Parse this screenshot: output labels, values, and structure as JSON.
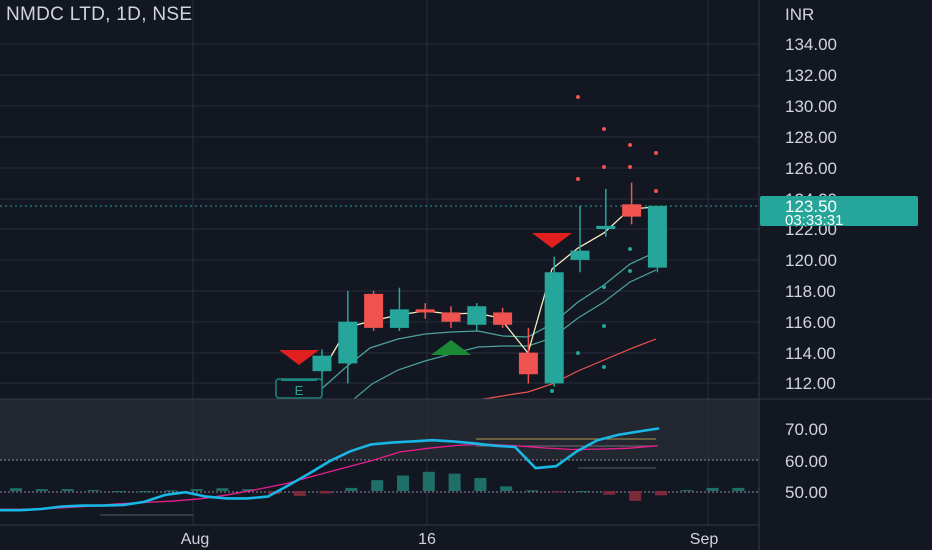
{
  "header": {
    "title": "NMDC LTD, 1D, NSE"
  },
  "price_axis": {
    "currency": "INR",
    "ticks": [
      "134.00",
      "132.00",
      "130.00",
      "128.00",
      "126.00",
      "124.00",
      "122.00",
      "120.00",
      "118.00",
      "116.00",
      "114.00",
      "112.00"
    ],
    "current_price": "123.50",
    "countdown": "03:33:31",
    "badge_color": "#26a69a"
  },
  "oscillator_axis": {
    "ticks": [
      "70.00",
      "60.00",
      "50.00"
    ]
  },
  "time_axis": {
    "labels": [
      "Aug",
      "16",
      "Sep"
    ]
  },
  "markers": {
    "earnings_label": "E"
  },
  "colors": {
    "up": "#26a69a",
    "down": "#ef5350",
    "background": "#131722",
    "text": "#d1d4dc"
  },
  "chart_data": {
    "type": "candlestick",
    "symbol": "NMDC LTD",
    "interval": "1D",
    "exchange": "NSE",
    "ylim": [
      111,
      135
    ],
    "candles": [
      {
        "o": 112.8,
        "h": 114.2,
        "l": 112.0,
        "c": 113.8
      },
      {
        "o": 113.3,
        "h": 118.0,
        "l": 112.0,
        "c": 116.0
      },
      {
        "o": 117.8,
        "h": 118.0,
        "l": 115.4,
        "c": 115.6
      },
      {
        "o": 115.6,
        "h": 118.2,
        "l": 115.4,
        "c": 116.8
      },
      {
        "o": 116.8,
        "h": 117.2,
        "l": 116.2,
        "c": 116.6
      },
      {
        "o": 116.6,
        "h": 117.0,
        "l": 115.6,
        "c": 116.0
      },
      {
        "o": 115.8,
        "h": 117.2,
        "l": 115.4,
        "c": 117.0
      },
      {
        "o": 116.6,
        "h": 116.9,
        "l": 115.6,
        "c": 115.8
      },
      {
        "o": 114.0,
        "h": 115.6,
        "l": 112.0,
        "c": 112.6
      },
      {
        "o": 112.0,
        "h": 120.2,
        "l": 111.8,
        "c": 119.2
      },
      {
        "o": 120.0,
        "h": 123.5,
        "l": 119.2,
        "c": 120.6
      },
      {
        "o": 122.0,
        "h": 124.6,
        "l": 121.5,
        "c": 122.2
      },
      {
        "o": 123.6,
        "h": 125.0,
        "l": 122.3,
        "c": 122.8
      },
      {
        "o": 119.5,
        "h": 123.5,
        "l": 119.2,
        "c": 123.5
      }
    ],
    "oscillator": {
      "ylim": [
        43,
        75
      ],
      "histogram": [
        50.9,
        50.6,
        50.6,
        50.3,
        50.0,
        50.0,
        50.2,
        50.6,
        50.9,
        50.6,
        49.0,
        48.4,
        49.2,
        51.0,
        53.5,
        55.0,
        56.2,
        55.6,
        54.2,
        51.5,
        50.2,
        49.6,
        50.0,
        48.8,
        46.8,
        48.6,
        50.3,
        51.0,
        51.0,
        51.0,
        51.0
      ],
      "signal_line": [
        44.1,
        44.1,
        44.5,
        45.0,
        45.8,
        46.3,
        46.7,
        47.5,
        48.8,
        50.5,
        52.4,
        54.9,
        57.4,
        59.8,
        62.6,
        63.8,
        64.7,
        65.1,
        64.6,
        63.9,
        63.4,
        63.5,
        63.8,
        64.6
      ],
      "fast_line": [
        43.8,
        43.8,
        44.2,
        45.0,
        45.3,
        45.3,
        45.5,
        46.5,
        48.7,
        49.6,
        48.2,
        47.6,
        47.6,
        48.2,
        51.8,
        55.6,
        59.6,
        62.8,
        65.0,
        65.6,
        66.0,
        66.4,
        66.0,
        65.4,
        64.6,
        64.2,
        57.4,
        58.0,
        62.8,
        66.4,
        68.1,
        69.2,
        70.2
      ]
    }
  }
}
